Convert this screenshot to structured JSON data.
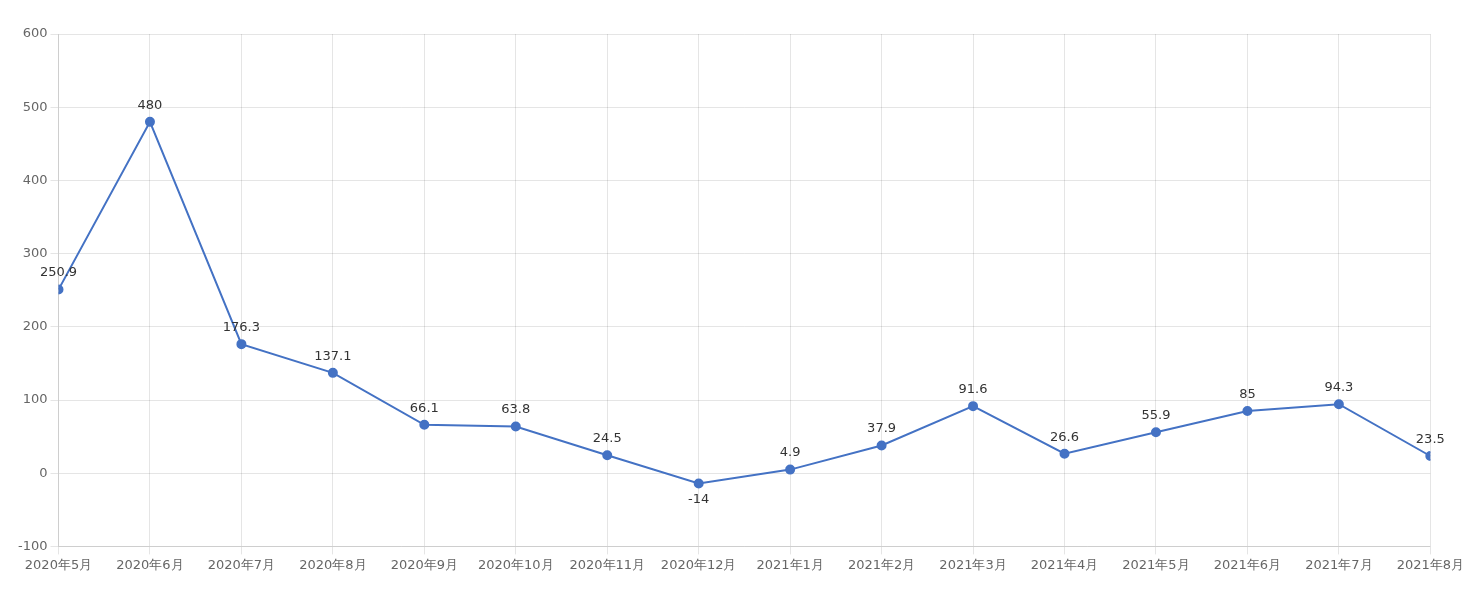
{
  "chart_data": {
    "type": "line",
    "categories": [
      "2020年5月",
      "2020年6月",
      "2020年7月",
      "2020年8月",
      "2020年9月",
      "2020年10月",
      "2020年11月",
      "2020年12月",
      "2021年1月",
      "2021年2月",
      "2021年3月",
      "2021年4月",
      "2021年5月",
      "2021年6月",
      "2021年7月",
      "2021年8月"
    ],
    "values": [
      250.9,
      480,
      176.3,
      137.1,
      66.1,
      63.8,
      24.5,
      -14,
      4.9,
      37.9,
      91.6,
      26.6,
      55.9,
      85,
      94.3,
      23.5
    ],
    "color": "#4472C4",
    "marker": "circle",
    "ylim": [
      -100,
      600
    ],
    "yticks": [
      -100,
      0,
      100,
      200,
      300,
      400,
      500,
      600
    ],
    "grid": true,
    "data_labels": true
  }
}
